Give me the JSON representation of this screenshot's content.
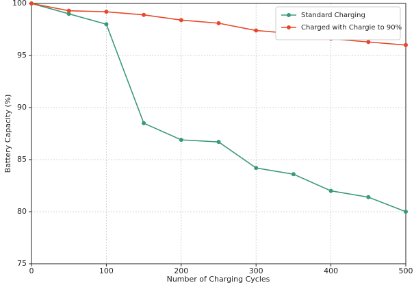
{
  "chart_data": {
    "type": "line",
    "x_label": "Number of Charging Cycles",
    "y_label": "Battery Capacity (%)",
    "x": [
      0,
      50,
      100,
      150,
      200,
      250,
      300,
      350,
      400,
      450,
      500
    ],
    "series": [
      {
        "name": "Standard Charging",
        "color": "#3a9a75",
        "values": [
          100,
          99,
          98,
          88.5,
          86.9,
          86.7,
          84.2,
          83.6,
          82.0,
          81.4,
          80
        ]
      },
      {
        "name": "Charged with Chargie to 90%",
        "color": "#e8472a",
        "values": [
          100,
          99.3,
          99.2,
          98.9,
          98.4,
          98.1,
          97.4,
          97.1,
          96.6,
          96.3,
          96.0
        ]
      }
    ],
    "xlim": [
      0,
      500
    ],
    "xticks": [
      0,
      100,
      200,
      300,
      400,
      500
    ],
    "ylim": [
      75,
      100
    ],
    "yticks": [
      75,
      80,
      85,
      90,
      95,
      100
    ],
    "grid": true,
    "legend": "upper right"
  }
}
